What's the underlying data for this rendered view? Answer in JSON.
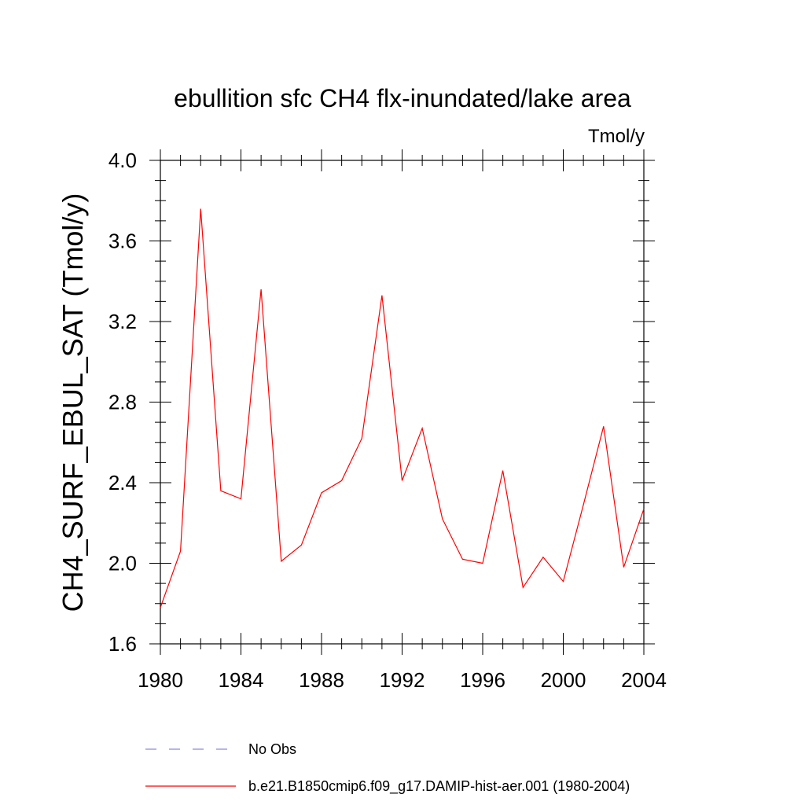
{
  "chart_data": {
    "type": "line",
    "title": "ebullition sfc CH4 flx-inundated/lake area",
    "units_label": "Tmol/y",
    "ylabel": "CH4_SURF_EBUL_SAT  (Tmol/y)",
    "xlabel": "",
    "xlim": [
      1980,
      2004
    ],
    "ylim": [
      1.6,
      4.0
    ],
    "x_ticks": [
      1980,
      1984,
      1988,
      1992,
      1996,
      2000,
      2004
    ],
    "y_ticks": [
      "1.6",
      "2.0",
      "2.4",
      "2.8",
      "3.2",
      "3.6",
      "4.0"
    ],
    "grid": false,
    "series": [
      {
        "name": "b.e21.B1850cmip6.f09_g17.DAMIP-hist-aer.001 (1980-2004)",
        "color": "#ff0000",
        "style": "solid",
        "x": [
          1980,
          1981,
          1982,
          1983,
          1984,
          1985,
          1986,
          1987,
          1988,
          1989,
          1990,
          1991,
          1992,
          1993,
          1994,
          1995,
          1996,
          1997,
          1998,
          1999,
          2000,
          2001,
          2002,
          2003,
          2004
        ],
        "y": [
          1.78,
          2.06,
          3.76,
          2.36,
          2.32,
          3.36,
          2.01,
          2.09,
          2.35,
          2.41,
          2.62,
          3.33,
          2.41,
          2.67,
          2.22,
          2.02,
          2.0,
          2.46,
          1.88,
          2.03,
          1.91,
          2.29,
          2.68,
          1.98,
          2.27
        ]
      }
    ],
    "legend": {
      "position": "bottom",
      "entries": [
        {
          "label": "No Obs",
          "color": "#8a8ad6",
          "style": "dashed"
        },
        {
          "label": "b.e21.B1850cmip6.f09_g17.DAMIP-hist-aer.001 (1980-2004)",
          "color": "#ff0000",
          "style": "solid"
        }
      ]
    }
  }
}
